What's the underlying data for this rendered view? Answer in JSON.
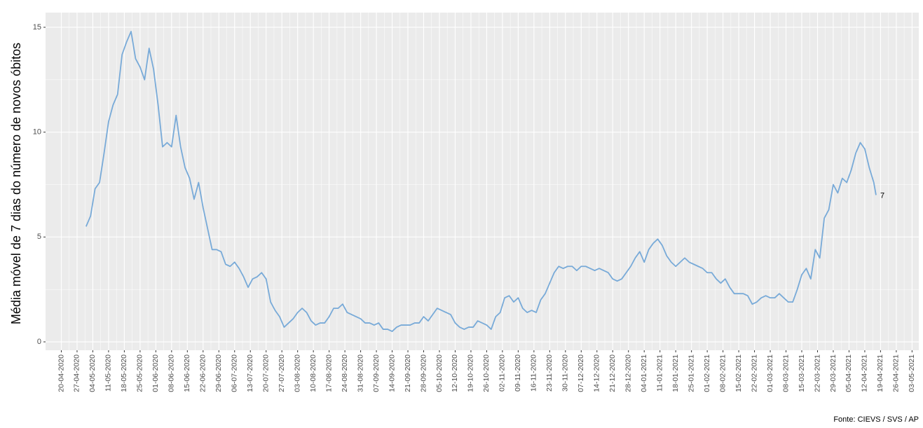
{
  "chart_data": {
    "type": "line",
    "y_label": "Média móvel de 7 dias do número de novos óbitos",
    "caption": "Fonte: CIEVS / SVS / AP",
    "x": [
      "01-05-2020",
      "03-05-2020",
      "05-05-2020",
      "07-05-2020",
      "09-05-2020",
      "11-05-2020",
      "13-05-2020",
      "15-05-2020",
      "17-05-2020",
      "19-05-2020",
      "21-05-2020",
      "23-05-2020",
      "25-05-2020",
      "27-05-2020",
      "29-05-2020",
      "31-05-2020",
      "02-06-2020",
      "04-06-2020",
      "06-06-2020",
      "08-06-2020",
      "10-06-2020",
      "12-06-2020",
      "14-06-2020",
      "16-06-2020",
      "18-06-2020",
      "20-06-2020",
      "22-06-2020",
      "24-06-2020",
      "26-06-2020",
      "28-06-2020",
      "30-06-2020",
      "02-07-2020",
      "04-07-2020",
      "06-07-2020",
      "08-07-2020",
      "10-07-2020",
      "12-07-2020",
      "14-07-2020",
      "16-07-2020",
      "18-07-2020",
      "20-07-2020",
      "22-07-2020",
      "24-07-2020",
      "26-07-2020",
      "28-07-2020",
      "30-07-2020",
      "01-08-2020",
      "03-08-2020",
      "05-08-2020",
      "07-08-2020",
      "09-08-2020",
      "11-08-2020",
      "13-08-2020",
      "15-08-2020",
      "17-08-2020",
      "19-08-2020",
      "21-08-2020",
      "23-08-2020",
      "25-08-2020",
      "27-08-2020",
      "29-08-2020",
      "31-08-2020",
      "02-09-2020",
      "04-09-2020",
      "06-09-2020",
      "08-09-2020",
      "10-09-2020",
      "12-09-2020",
      "14-09-2020",
      "16-09-2020",
      "18-09-2020",
      "20-09-2020",
      "22-09-2020",
      "24-09-2020",
      "26-09-2020",
      "28-09-2020",
      "30-09-2020",
      "02-10-2020",
      "04-10-2020",
      "06-10-2020",
      "08-10-2020",
      "10-10-2020",
      "12-10-2020",
      "14-10-2020",
      "16-10-2020",
      "18-10-2020",
      "20-10-2020",
      "22-10-2020",
      "24-10-2020",
      "26-10-2020",
      "28-10-2020",
      "30-10-2020",
      "01-11-2020",
      "03-11-2020",
      "05-11-2020",
      "07-11-2020",
      "09-11-2020",
      "11-11-2020",
      "13-11-2020",
      "15-11-2020",
      "17-11-2020",
      "19-11-2020",
      "21-11-2020",
      "23-11-2020",
      "25-11-2020",
      "27-11-2020",
      "29-11-2020",
      "01-12-2020",
      "03-12-2020",
      "05-12-2020",
      "07-12-2020",
      "09-12-2020",
      "11-12-2020",
      "13-12-2020",
      "15-12-2020",
      "17-12-2020",
      "19-12-2020",
      "21-12-2020",
      "23-12-2020",
      "25-12-2020",
      "27-12-2020",
      "29-12-2020",
      "31-12-2020",
      "02-01-2021",
      "04-01-2021",
      "06-01-2021",
      "08-01-2021",
      "10-01-2021",
      "12-01-2021",
      "14-01-2021",
      "16-01-2021",
      "18-01-2021",
      "20-01-2021",
      "22-01-2021",
      "24-01-2021",
      "26-01-2021",
      "28-01-2021",
      "30-01-2021",
      "01-02-2021",
      "03-02-2021",
      "05-02-2021",
      "07-02-2021",
      "09-02-2021",
      "11-02-2021",
      "13-02-2021",
      "15-02-2021",
      "17-02-2021",
      "19-02-2021",
      "21-02-2021",
      "23-02-2021",
      "25-02-2021",
      "27-02-2021",
      "01-03-2021",
      "03-03-2021",
      "05-03-2021",
      "07-03-2021",
      "09-03-2021",
      "11-03-2021",
      "13-03-2021",
      "15-03-2021",
      "17-03-2021",
      "19-03-2021",
      "21-03-2021",
      "23-03-2021",
      "25-03-2021",
      "27-03-2021",
      "29-03-2021",
      "31-03-2021",
      "02-04-2021",
      "04-04-2021",
      "06-04-2021",
      "08-04-2021",
      "10-04-2021",
      "12-04-2021",
      "14-04-2021",
      "16-04-2021",
      "17-04-2021"
    ],
    "series": [
      {
        "color": "#78aad8",
        "values": [
          5.5,
          6.0,
          7.3,
          7.6,
          9.0,
          10.5,
          11.3,
          11.8,
          13.7,
          14.3,
          14.8,
          13.5,
          13.1,
          12.5,
          14.0,
          13.0,
          11.3,
          9.3,
          9.5,
          9.3,
          10.8,
          9.3,
          8.3,
          7.8,
          6.8,
          7.6,
          6.4,
          5.4,
          4.4,
          4.4,
          4.3,
          3.7,
          3.6,
          3.8,
          3.5,
          3.1,
          2.6,
          3.0,
          3.1,
          3.3,
          3.0,
          1.9,
          1.5,
          1.2,
          0.7,
          0.9,
          1.1,
          1.4,
          1.6,
          1.4,
          1.0,
          0.8,
          0.9,
          0.9,
          1.2,
          1.6,
          1.6,
          1.8,
          1.4,
          1.3,
          1.2,
          1.1,
          0.9,
          0.9,
          0.8,
          0.9,
          0.6,
          0.6,
          0.5,
          0.7,
          0.8,
          0.8,
          0.8,
          0.9,
          0.9,
          1.2,
          1.0,
          1.3,
          1.6,
          1.5,
          1.4,
          1.3,
          0.9,
          0.7,
          0.6,
          0.7,
          0.7,
          1.0,
          0.9,
          0.8,
          0.6,
          1.2,
          1.4,
          2.1,
          2.2,
          1.9,
          2.1,
          1.6,
          1.4,
          1.5,
          1.4,
          2.0,
          2.3,
          2.8,
          3.3,
          3.6,
          3.5,
          3.6,
          3.6,
          3.4,
          3.6,
          3.6,
          3.5,
          3.4,
          3.5,
          3.4,
          3.3,
          3.0,
          2.9,
          3.0,
          3.3,
          3.6,
          4.0,
          4.3,
          3.8,
          4.4,
          4.7,
          4.9,
          4.6,
          4.1,
          3.8,
          3.6,
          3.8,
          4.0,
          3.8,
          3.7,
          3.6,
          3.5,
          3.3,
          3.3,
          3.0,
          2.8,
          3.0,
          2.6,
          2.3,
          2.3,
          2.3,
          2.2,
          1.8,
          1.9,
          2.1,
          2.2,
          2.1,
          2.1,
          2.3,
          2.1,
          1.9,
          1.9,
          2.5,
          3.2,
          3.5,
          3.0,
          4.4,
          4.0,
          5.9,
          6.3,
          7.5,
          7.1,
          7.8,
          7.6,
          8.2,
          9.0,
          9.5,
          9.2,
          8.3,
          7.6,
          7
        ]
      }
    ],
    "xlim": [
      "13-04-2020",
      "06-05-2021"
    ],
    "xticks": [
      "20-04-2020",
      "27-04-2020",
      "04-05-2020",
      "11-05-2020",
      "18-05-2020",
      "25-05-2020",
      "01-06-2020",
      "08-06-2020",
      "15-06-2020",
      "22-06-2020",
      "29-06-2020",
      "06-07-2020",
      "13-07-2020",
      "20-07-2020",
      "27-07-2020",
      "03-08-2020",
      "10-08-2020",
      "17-08-2020",
      "24-08-2020",
      "31-08-2020",
      "07-09-2020",
      "14-09-2020",
      "21-09-2020",
      "28-09-2020",
      "05-10-2020",
      "12-10-2020",
      "19-10-2020",
      "26-10-2020",
      "02-11-2020",
      "09-11-2020",
      "16-11-2020",
      "23-11-2020",
      "30-11-2020",
      "07-12-2020",
      "14-12-2020",
      "21-12-2020",
      "28-12-2020",
      "04-01-2021",
      "11-01-2021",
      "18-01-2021",
      "25-01-2021",
      "01-02-2021",
      "08-02-2021",
      "15-02-2021",
      "22-02-2021",
      "01-03-2021",
      "08-03-2021",
      "15-03-2021",
      "22-03-2021",
      "29-03-2021",
      "05-04-2021",
      "12-04-2021",
      "19-04-2021",
      "26-04-2021",
      "03-05-2021"
    ],
    "ylim": [
      -0.4,
      15.7
    ],
    "yticks": [
      0,
      5,
      10,
      15
    ],
    "grid": true,
    "end_label": true
  }
}
